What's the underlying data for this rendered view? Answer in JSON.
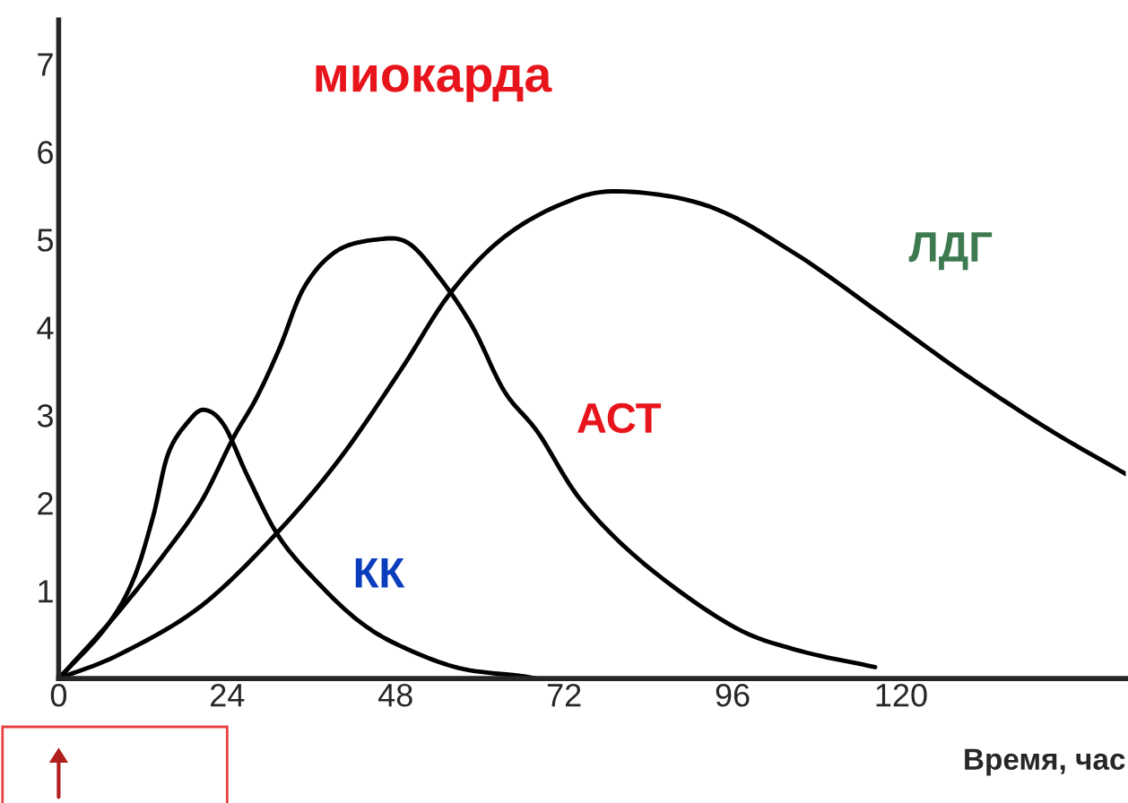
{
  "chart_data": {
    "type": "line",
    "title": "миокарда",
    "xlabel": "Время, час",
    "xlim": [
      0,
      152
    ],
    "xticks": [
      0,
      24,
      48,
      72,
      96,
      120
    ],
    "ylim": [
      0,
      7.5
    ],
    "yticks": [
      1,
      2,
      3,
      4,
      5,
      6,
      7
    ],
    "grid": false,
    "legend": false,
    "marker": "none",
    "line_style": "solid",
    "series": [
      {
        "name": "КК",
        "color": "#000000",
        "x": [
          0,
          6.5,
          10.5,
          13.4,
          15.6,
          18.5,
          20.8,
          23.6,
          27,
          31.5,
          37.3,
          43,
          48.7,
          57,
          65.8,
          68
        ],
        "values": [
          0,
          0.56,
          1.1,
          1.83,
          2.56,
          2.93,
          3.06,
          2.88,
          2.29,
          1.6,
          1.06,
          0.64,
          0.37,
          0.12,
          0.03,
          0
        ]
      },
      {
        "name": "АСТ",
        "color": "#000000",
        "x": [
          0,
          7.7,
          14.6,
          20.2,
          24.8,
          28.2,
          31.5,
          35,
          39.6,
          45.3,
          49.8,
          54.4,
          59,
          63.5,
          68.3,
          74.5,
          83.5,
          95.7,
          104.9,
          116.3
        ],
        "values": [
          0,
          0.68,
          1.37,
          2.0,
          2.73,
          3.2,
          3.77,
          4.46,
          4.87,
          5.0,
          4.96,
          4.55,
          4.0,
          3.27,
          2.8,
          2.02,
          1.3,
          0.61,
          0.33,
          0.13
        ]
      },
      {
        "name": "ЛДГ",
        "color": "#000000",
        "x": [
          0,
          8.8,
          20.2,
          31,
          40,
          48.7,
          55.6,
          63,
          71.5,
          79.6,
          92.6,
          104.9,
          117,
          129,
          141,
          152
        ],
        "values": [
          0,
          0.28,
          0.82,
          1.65,
          2.5,
          3.51,
          4.37,
          5.0,
          5.4,
          5.55,
          5.38,
          4.84,
          4.16,
          3.47,
          2.84,
          2.33
        ]
      }
    ]
  }
}
